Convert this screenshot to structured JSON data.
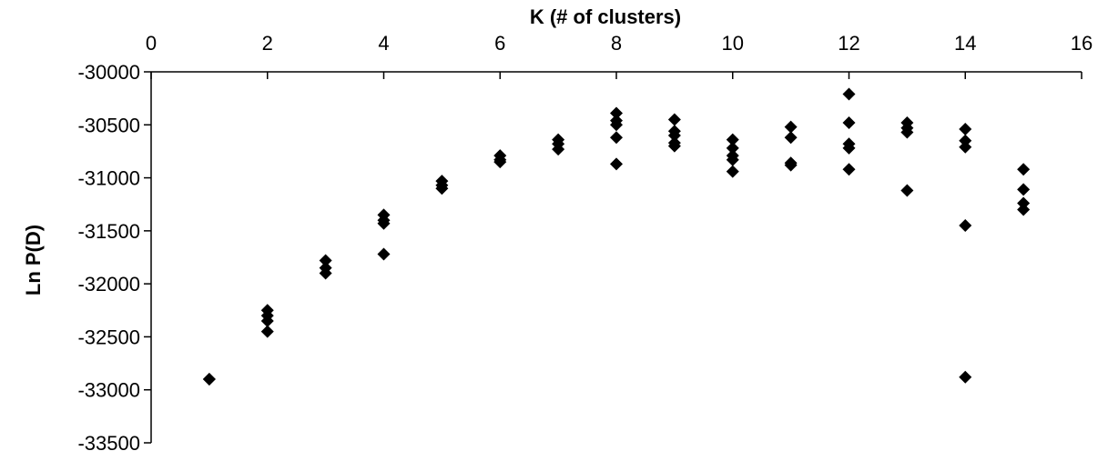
{
  "chart_data": {
    "type": "scatter",
    "title": "",
    "xlabel": "K (# of clusters)",
    "ylabel": "Ln P(D)",
    "xlim": [
      0,
      16
    ],
    "ylim": [
      -33500,
      -30000
    ],
    "x_ticks": [
      0,
      2,
      4,
      6,
      8,
      10,
      12,
      14,
      16
    ],
    "y_ticks": [
      -30000,
      -30500,
      -31000,
      -31500,
      -32000,
      -32500,
      -33000,
      -33500
    ],
    "x_tick_labels": [
      "0",
      "2",
      "4",
      "6",
      "8",
      "10",
      "12",
      "14",
      "16"
    ],
    "y_tick_labels": [
      "-30000",
      "-30500",
      "-31000",
      "-31500",
      "-32000",
      "-32500",
      "-33000",
      "-33500"
    ],
    "x_axis_position": "top",
    "grid": false,
    "legend": "none",
    "marker": "diamond",
    "marker_color": "#000000",
    "series": [
      {
        "points": [
          [
            1,
            -32900
          ],
          [
            1,
            -32900
          ],
          [
            2,
            -32250
          ],
          [
            2,
            -32300
          ],
          [
            2,
            -32350
          ],
          [
            2,
            -32450
          ],
          [
            3,
            -31780
          ],
          [
            3,
            -31850
          ],
          [
            3,
            -31900
          ],
          [
            4,
            -31350
          ],
          [
            4,
            -31400
          ],
          [
            4,
            -31430
          ],
          [
            4,
            -31720
          ],
          [
            5,
            -31030
          ],
          [
            5,
            -31070
          ],
          [
            5,
            -31100
          ],
          [
            6,
            -30790
          ],
          [
            6,
            -30830
          ],
          [
            6,
            -30850
          ],
          [
            7,
            -30640
          ],
          [
            7,
            -30680
          ],
          [
            7,
            -30730
          ],
          [
            8,
            -30390
          ],
          [
            8,
            -30460
          ],
          [
            8,
            -30500
          ],
          [
            8,
            -30620
          ],
          [
            8,
            -30870
          ],
          [
            9,
            -30450
          ],
          [
            9,
            -30560
          ],
          [
            9,
            -30600
          ],
          [
            9,
            -30670
          ],
          [
            9,
            -30700
          ],
          [
            10,
            -30640
          ],
          [
            10,
            -30720
          ],
          [
            10,
            -30790
          ],
          [
            10,
            -30830
          ],
          [
            10,
            -30940
          ],
          [
            11,
            -30520
          ],
          [
            11,
            -30620
          ],
          [
            11,
            -30860
          ],
          [
            11,
            -30880
          ],
          [
            12,
            -30210
          ],
          [
            12,
            -30480
          ],
          [
            12,
            -30680
          ],
          [
            12,
            -30720
          ],
          [
            12,
            -30920
          ],
          [
            13,
            -30480
          ],
          [
            13,
            -30530
          ],
          [
            13,
            -30570
          ],
          [
            13,
            -31120
          ],
          [
            14,
            -30540
          ],
          [
            14,
            -30650
          ],
          [
            14,
            -30710
          ],
          [
            14,
            -31450
          ],
          [
            14,
            -32880
          ],
          [
            15,
            -30920
          ],
          [
            15,
            -31110
          ],
          [
            15,
            -31240
          ],
          [
            15,
            -31300
          ]
        ]
      }
    ]
  }
}
